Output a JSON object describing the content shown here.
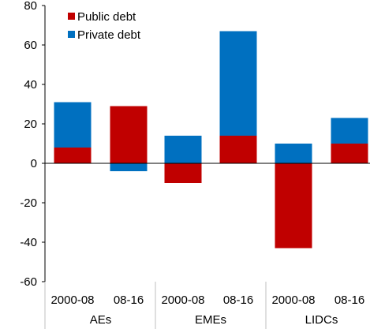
{
  "chart_data": {
    "type": "bar",
    "stacked": true,
    "groups": [
      {
        "label": "AEs",
        "categories": [
          "2000-08",
          "08-16"
        ]
      },
      {
        "label": "EMEs",
        "categories": [
          "2000-08",
          "08-16"
        ]
      },
      {
        "label": "LIDCs",
        "categories": [
          "2000-08",
          "08-16"
        ]
      }
    ],
    "categories": [
      "2000-08",
      "08-16",
      "2000-08",
      "08-16",
      "2000-08",
      "08-16"
    ],
    "series": [
      {
        "name": "Public debt",
        "color": "#c00000",
        "values": [
          8,
          29,
          -10,
          14,
          -43,
          10
        ]
      },
      {
        "name": "Private debt",
        "color": "#0070c0",
        "values": [
          23,
          -4,
          14,
          53,
          10,
          13
        ]
      }
    ],
    "ylim": [
      -60,
      80
    ],
    "yticks": [
      80,
      60,
      40,
      20,
      0,
      -20,
      -40,
      -60
    ],
    "legend": "top-left",
    "grid": false
  }
}
